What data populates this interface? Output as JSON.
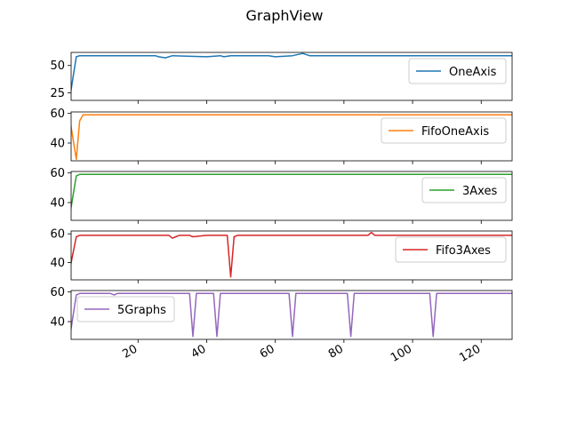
{
  "window": {
    "title": "GraphView"
  },
  "chart_data": [
    {
      "type": "line",
      "series": [
        {
          "name": "OneAxis",
          "color": "#1f77b4",
          "x": [
            0,
            2,
            3,
            10,
            20,
            25,
            26,
            28,
            30,
            40,
            44,
            45,
            47,
            50,
            58,
            60,
            65,
            68,
            70,
            80,
            90,
            95,
            100,
            110,
            120,
            130
          ],
          "y": [
            18,
            58,
            59,
            59,
            59,
            59,
            58,
            57,
            59,
            58,
            59,
            58,
            59,
            59,
            59,
            58,
            59,
            61,
            59,
            59,
            59,
            59,
            59,
            59,
            59,
            59
          ]
        }
      ],
      "xlim": [
        0.5,
        129
      ],
      "ylim": [
        18,
        62
      ],
      "yticks": [
        25,
        50
      ],
      "legend": "upper right"
    },
    {
      "type": "line",
      "series": [
        {
          "name": "FifoOneAxis",
          "color": "#ff7f0e",
          "x": [
            0,
            2,
            3,
            4,
            10,
            30,
            60,
            90,
            120,
            130
          ],
          "y": [
            58,
            29,
            55,
            59,
            59,
            59,
            59,
            59,
            59,
            59
          ]
        }
      ],
      "xlim": [
        0.5,
        129
      ],
      "ylim": [
        28,
        61
      ],
      "yticks": [
        40,
        60
      ],
      "legend": "upper right"
    },
    {
      "type": "line",
      "series": [
        {
          "name": "3Axes",
          "color": "#2ca02c",
          "x": [
            0,
            2,
            3,
            10,
            40,
            80,
            120,
            130
          ],
          "y": [
            30,
            58,
            59,
            59,
            59,
            59,
            59,
            59
          ]
        }
      ],
      "xlim": [
        0.5,
        129
      ],
      "ylim": [
        28,
        61
      ],
      "yticks": [
        40,
        60
      ],
      "legend": "upper right"
    },
    {
      "type": "line",
      "series": [
        {
          "name": "Fifo3Axes",
          "color": "#d62728",
          "x": [
            0,
            2,
            3,
            10,
            20,
            29,
            30,
            31,
            32,
            35,
            36,
            40,
            44,
            46,
            47,
            48,
            49,
            50,
            60,
            80,
            87,
            88,
            89,
            90,
            100,
            120,
            130
          ],
          "y": [
            34,
            58,
            59,
            59,
            59,
            59,
            57,
            58,
            59,
            59,
            58,
            59,
            59,
            59,
            30,
            58,
            59,
            59,
            59,
            59,
            59,
            61,
            59,
            59,
            59,
            59,
            59
          ]
        }
      ],
      "xlim": [
        0.5,
        129
      ],
      "ylim": [
        28,
        62
      ],
      "yticks": [
        40,
        60
      ],
      "legend": "upper right"
    },
    {
      "type": "line",
      "series": [
        {
          "name": "5Graphs",
          "color": "#9467bd",
          "x": [
            0,
            2,
            3,
            10,
            12,
            13,
            14,
            20,
            30,
            35,
            36,
            37,
            38,
            40,
            42,
            43,
            44,
            45,
            50,
            60,
            64,
            65,
            66,
            67,
            70,
            80,
            81,
            82,
            83,
            84,
            90,
            100,
            105,
            106,
            107,
            108,
            110,
            120,
            130
          ],
          "y": [
            28,
            58,
            59,
            59,
            59,
            58,
            59,
            59,
            59,
            59,
            30,
            59,
            59,
            59,
            59,
            30,
            59,
            59,
            59,
            59,
            59,
            30,
            59,
            59,
            59,
            59,
            59,
            30,
            59,
            59,
            59,
            59,
            59,
            30,
            59,
            59,
            59,
            59,
            59
          ]
        }
      ],
      "xlim": [
        0.5,
        129
      ],
      "ylim": [
        28,
        61
      ],
      "yticks": [
        40,
        60
      ],
      "legend": "upper left",
      "xticks": [
        20,
        40,
        60,
        80,
        100,
        120
      ]
    }
  ]
}
